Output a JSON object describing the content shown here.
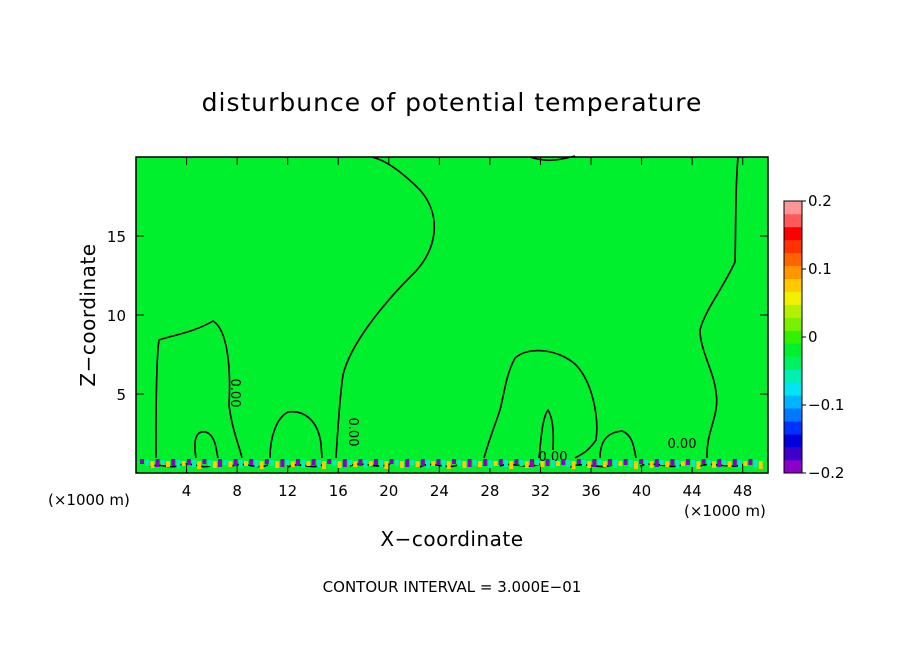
{
  "chart_data": {
    "type": "heatmap",
    "title": "disturbunce of potential temperature",
    "xlabel": "X−coordinate",
    "ylabel": "Z−coordinate",
    "x_unit_left": "(×1000 m)",
    "x_unit_right": "(×1000 m)",
    "xlim": [
      0,
      50
    ],
    "ylim": [
      0,
      20
    ],
    "x_ticks": [
      4,
      8,
      12,
      16,
      20,
      24,
      28,
      32,
      36,
      40,
      44,
      48
    ],
    "x_tick_labels": [
      "4",
      "8",
      "12",
      "16",
      "20",
      "24",
      "28",
      "32",
      "36",
      "40",
      "44",
      "48"
    ],
    "y_ticks": [
      5,
      10,
      15
    ],
    "y_tick_labels": [
      "5",
      "10",
      "15"
    ],
    "colorbar": {
      "range": [
        -0.2,
        0.2
      ],
      "ticks": [
        0.2,
        0.1,
        0,
        -0.1,
        -0.2
      ],
      "tick_labels": [
        "0.2",
        "0.1",
        "0",
        "−0.1",
        "−0.2"
      ],
      "colors": [
        "#8b00c8",
        "#3c00c8",
        "#0000dc",
        "#0032ff",
        "#0078ff",
        "#00b4ff",
        "#00e6f0",
        "#00f0b4",
        "#00f064",
        "#00f02d",
        "#32f000",
        "#78f000",
        "#b4f000",
        "#f0f000",
        "#ffc800",
        "#ff9600",
        "#ff6400",
        "#ff3200",
        "#ff0000",
        "#ff5a5a",
        "#ff9696"
      ]
    },
    "background_value": 0,
    "contour_label": "0.00",
    "contour_interval_text": "CONTOUR INTERVAL = 3.000E−01",
    "colors": {
      "field": "#00f02d",
      "contour": "#000000"
    }
  }
}
